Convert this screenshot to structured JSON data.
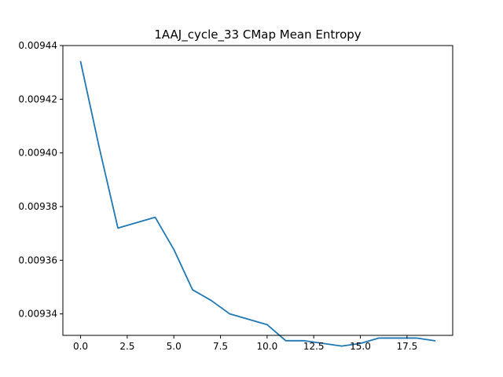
{
  "chart_data": {
    "type": "line",
    "title": "1AAJ_cycle_33 CMap Mean Entropy",
    "xlabel": "",
    "ylabel": "",
    "xlim": [
      -0.95,
      19.95
    ],
    "ylim": [
      0.009332,
      0.00944
    ],
    "x_ticks": [
      0,
      2.5,
      5,
      7.5,
      10,
      12.5,
      15,
      17.5
    ],
    "x_tick_labels": [
      "0.0",
      "2.5",
      "5.0",
      "7.5",
      "10.0",
      "12.5",
      "15.0",
      "17.5"
    ],
    "y_ticks": [
      0.00934,
      0.00936,
      0.00938,
      0.0094,
      0.00942,
      0.00944
    ],
    "y_tick_labels": [
      "0.00934",
      "0.00936",
      "0.00938",
      "0.00940",
      "0.00942",
      "0.00944"
    ],
    "grid": false,
    "series": [
      {
        "color": "#1f77b4",
        "x": [
          0,
          1,
          2,
          3,
          4,
          5,
          6,
          7,
          8,
          9,
          10,
          11,
          12,
          13,
          14,
          15,
          16,
          17,
          18,
          19
        ],
        "values": [
          0.009434,
          0.009402,
          0.009372,
          0.009374,
          0.009376,
          0.009364,
          0.009349,
          0.009345,
          0.00934,
          0.009338,
          0.009336,
          0.00933,
          0.00933,
          0.009329,
          0.009328,
          0.009329,
          0.009331,
          0.009331,
          0.009331,
          0.00933
        ]
      }
    ]
  }
}
